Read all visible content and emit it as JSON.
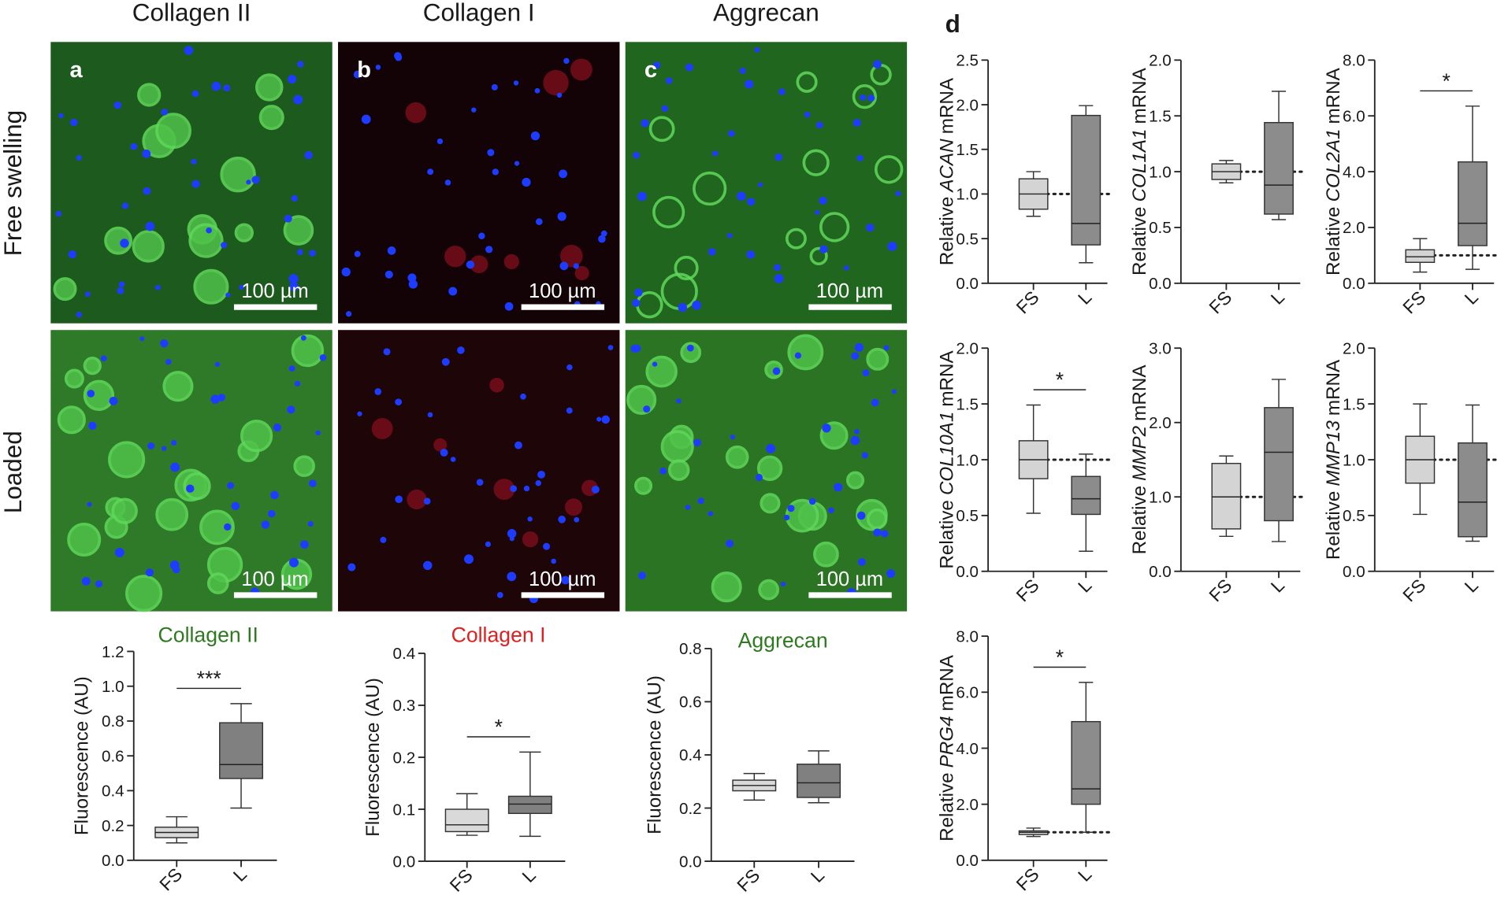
{
  "figure": {
    "column_titles": [
      "Collagen II",
      "Collagen I",
      "Aggrecan"
    ],
    "row_labels": [
      "Free swelling",
      "Loaded"
    ],
    "panel_letters": [
      "a",
      "b",
      "c"
    ],
    "scale_bar_label": "100 µm",
    "panel_d_letter": "d"
  },
  "chart_data": [
    {
      "type": "box",
      "title": "Collagen II",
      "title_color": "#2e7a1f",
      "ylabel": "Fluorescence (AU)",
      "categories": [
        "FS",
        "L"
      ],
      "significance": "***",
      "ylim": [
        0,
        1.2
      ],
      "yticks": [
        {
          "value": 0,
          "label": "0.0"
        },
        {
          "value": 0.2,
          "label": "0.2"
        },
        {
          "value": 0.4,
          "label": "0.4"
        },
        {
          "value": 0.6,
          "label": "0.6"
        },
        {
          "value": 0.8,
          "label": "0.8"
        },
        {
          "value": 1,
          "label": "1.0"
        },
        {
          "value": 1.2,
          "label": "1.2"
        }
      ],
      "boxes": [
        {
          "min": 0.1,
          "q1": 0.13,
          "median": 0.16,
          "q3": 0.19,
          "max": 0.25,
          "color": "#d9d9d9"
        },
        {
          "min": 0.3,
          "q1": 0.47,
          "median": 0.55,
          "q3": 0.79,
          "max": 0.9,
          "color": "#808080"
        }
      ]
    },
    {
      "type": "box",
      "title": "Collagen I",
      "title_color": "#e02020",
      "ylabel": "Fluorescence (AU)",
      "categories": [
        "FS",
        "L"
      ],
      "significance": "*",
      "ylim": [
        0,
        0.4
      ],
      "yticks": [
        {
          "value": 0,
          "label": "0.0"
        },
        {
          "value": 0.1,
          "label": "0.1"
        },
        {
          "value": 0.2,
          "label": "0.2"
        },
        {
          "value": 0.3,
          "label": "0.3"
        },
        {
          "value": 0.4,
          "label": "0.4"
        }
      ],
      "boxes": [
        {
          "min": 0.05,
          "q1": 0.057,
          "median": 0.07,
          "q3": 0.1,
          "max": 0.13,
          "color": "#d9d9d9"
        },
        {
          "min": 0.048,
          "q1": 0.092,
          "median": 0.11,
          "q3": 0.125,
          "max": 0.21,
          "color": "#808080"
        }
      ]
    },
    {
      "type": "box",
      "title": "Aggrecan",
      "title_color": "#2e7a1f",
      "ylabel": "Fluorescence (AU)",
      "categories": [
        "FS",
        "L"
      ],
      "ylim": [
        0,
        0.8
      ],
      "yticks": [
        {
          "value": 0,
          "label": "0.0"
        },
        {
          "value": 0.2,
          "label": "0.2"
        },
        {
          "value": 0.4,
          "label": "0.4"
        },
        {
          "value": 0.6,
          "label": "0.6"
        },
        {
          "value": 0.8,
          "label": "0.8"
        }
      ],
      "boxes": [
        {
          "min": 0.23,
          "q1": 0.265,
          "median": 0.285,
          "q3": 0.305,
          "max": 0.33,
          "color": "#d9d9d9"
        },
        {
          "min": 0.22,
          "q1": 0.24,
          "median": 0.295,
          "q3": 0.365,
          "max": 0.415,
          "color": "#808080"
        }
      ]
    },
    {
      "type": "box",
      "ylabel": [
        "Relative",
        "ACAN",
        "mRNA"
      ],
      "categories": [
        "FS",
        "L"
      ],
      "reference_line": 1,
      "ylim": [
        0,
        2.5
      ],
      "yticks": [
        {
          "value": 0,
          "label": "0.0"
        },
        {
          "value": 0.5,
          "label": "0.5"
        },
        {
          "value": 1,
          "label": "1.0"
        },
        {
          "value": 1.5,
          "label": "1.5"
        },
        {
          "value": 2,
          "label": "2.0"
        },
        {
          "value": 2.5,
          "label": "2.5"
        }
      ],
      "boxes": [
        {
          "min": 0.75,
          "q1": 0.83,
          "median": 1.0,
          "q3": 1.17,
          "max": 1.25,
          "color": "#d4d4d4"
        },
        {
          "min": 0.23,
          "q1": 0.43,
          "median": 0.67,
          "q3": 1.88,
          "max": 1.99,
          "color": "#8c8c8c"
        }
      ]
    },
    {
      "type": "box",
      "ylabel": [
        "Relative",
        "COL1A1",
        "mRNA"
      ],
      "categories": [
        "FS",
        "L"
      ],
      "reference_line": 1,
      "ylim": [
        0,
        2
      ],
      "yticks": [
        {
          "value": 0,
          "label": "0.0"
        },
        {
          "value": 0.5,
          "label": "0.5"
        },
        {
          "value": 1,
          "label": "1.0"
        },
        {
          "value": 1.5,
          "label": "1.5"
        },
        {
          "value": 2,
          "label": "2.0"
        }
      ],
      "boxes": [
        {
          "min": 0.9,
          "q1": 0.93,
          "median": 1.0,
          "q3": 1.07,
          "max": 1.1,
          "color": "#d4d4d4"
        },
        {
          "min": 0.57,
          "q1": 0.62,
          "median": 0.88,
          "q3": 1.44,
          "max": 1.72,
          "color": "#8c8c8c"
        }
      ]
    },
    {
      "type": "box",
      "ylabel": [
        "Relative",
        "COL2A1",
        "mRNA"
      ],
      "categories": [
        "FS",
        "L"
      ],
      "reference_line": 1,
      "significance": "*",
      "ylim": [
        0,
        8
      ],
      "yticks": [
        {
          "value": 0,
          "label": "0.0"
        },
        {
          "value": 2,
          "label": "2.0"
        },
        {
          "value": 4,
          "label": "4.0"
        },
        {
          "value": 6,
          "label": "6.0"
        },
        {
          "value": 8,
          "label": "8.0"
        }
      ],
      "boxes": [
        {
          "min": 0.4,
          "q1": 0.75,
          "median": 0.95,
          "q3": 1.2,
          "max": 1.6,
          "color": "#d4d4d4"
        },
        {
          "min": 0.5,
          "q1": 1.35,
          "median": 2.15,
          "q3": 4.35,
          "max": 6.35,
          "color": "#8c8c8c"
        }
      ]
    },
    {
      "type": "box",
      "ylabel": [
        "Relative",
        "COL10A1",
        "mRNA"
      ],
      "categories": [
        "FS",
        "L"
      ],
      "reference_line": 1,
      "significance": "*",
      "ylim": [
        0,
        2
      ],
      "yticks": [
        {
          "value": 0,
          "label": "0.0"
        },
        {
          "value": 0.5,
          "label": "0.5"
        },
        {
          "value": 1,
          "label": "1.0"
        },
        {
          "value": 1.5,
          "label": "1.5"
        },
        {
          "value": 2,
          "label": "2.0"
        }
      ],
      "boxes": [
        {
          "min": 0.52,
          "q1": 0.83,
          "median": 1.0,
          "q3": 1.17,
          "max": 1.49,
          "color": "#d4d4d4"
        },
        {
          "min": 0.18,
          "q1": 0.51,
          "median": 0.65,
          "q3": 0.85,
          "max": 1.05,
          "color": "#8c8c8c"
        }
      ]
    },
    {
      "type": "box",
      "ylabel": [
        "Relative",
        "MMP2",
        "mRNA"
      ],
      "categories": [
        "FS",
        "L"
      ],
      "reference_line": 1,
      "ylim": [
        0,
        3
      ],
      "yticks": [
        {
          "value": 0,
          "label": "0.0"
        },
        {
          "value": 1,
          "label": "1.0"
        },
        {
          "value": 2,
          "label": "2.0"
        },
        {
          "value": 3,
          "label": "3.0"
        }
      ],
      "boxes": [
        {
          "min": 0.47,
          "q1": 0.57,
          "median": 1.0,
          "q3": 1.45,
          "max": 1.55,
          "color": "#d4d4d4"
        },
        {
          "min": 0.4,
          "q1": 0.68,
          "median": 1.6,
          "q3": 2.2,
          "max": 2.58,
          "color": "#8c8c8c"
        }
      ]
    },
    {
      "type": "box",
      "ylabel": [
        "Relative",
        "MMP13",
        "mRNA"
      ],
      "categories": [
        "FS",
        "L"
      ],
      "reference_line": 1,
      "ylim": [
        0,
        2
      ],
      "yticks": [
        {
          "value": 0,
          "label": "0.0"
        },
        {
          "value": 0.5,
          "label": "0.5"
        },
        {
          "value": 1,
          "label": "1.0"
        },
        {
          "value": 1.5,
          "label": "1.5"
        },
        {
          "value": 2,
          "label": "2.0"
        }
      ],
      "boxes": [
        {
          "min": 0.51,
          "q1": 0.79,
          "median": 1.0,
          "q3": 1.21,
          "max": 1.5,
          "color": "#d4d4d4"
        },
        {
          "min": 0.27,
          "q1": 0.31,
          "median": 0.62,
          "q3": 1.15,
          "max": 1.49,
          "color": "#8c8c8c"
        }
      ]
    },
    {
      "type": "box",
      "ylabel": [
        "Relative",
        "PRG4",
        "mRNA"
      ],
      "categories": [
        "FS",
        "L"
      ],
      "reference_line": 1,
      "significance": "*",
      "ylim": [
        0,
        8
      ],
      "yticks": [
        {
          "value": 0,
          "label": "0.0"
        },
        {
          "value": 2,
          "label": "2.0"
        },
        {
          "value": 4,
          "label": "4.0"
        },
        {
          "value": 6,
          "label": "6.0"
        },
        {
          "value": 8,
          "label": "8.0"
        }
      ],
      "boxes": [
        {
          "min": 0.85,
          "q1": 0.92,
          "median": 1.0,
          "q3": 1.05,
          "max": 1.15,
          "color": "#d4d4d4"
        },
        {
          "min": 1.0,
          "q1": 2.0,
          "median": 2.55,
          "q3": 4.95,
          "max": 6.35,
          "color": "#8c8c8c"
        }
      ]
    }
  ]
}
